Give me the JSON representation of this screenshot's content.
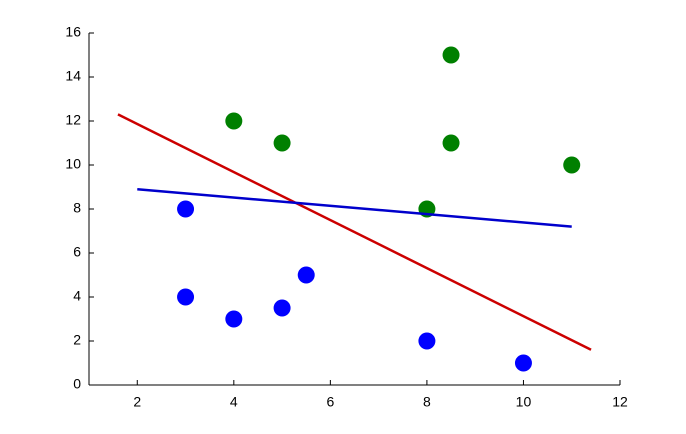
{
  "chart_data": {
    "type": "scatter",
    "xlim": [
      1,
      12
    ],
    "xticks": [
      2,
      4,
      6,
      8,
      10,
      12
    ],
    "ylim": [
      0,
      16
    ],
    "yticks": [
      0,
      2,
      4,
      6,
      8,
      10,
      12,
      14,
      16
    ],
    "grid": false,
    "series": [
      {
        "color": "#008000",
        "mode": "markers",
        "x": [
          4,
          5,
          8.5,
          8.5,
          8,
          11
        ],
        "values": [
          12,
          11,
          15,
          11,
          8,
          10
        ]
      },
      {
        "color": "#0000ff",
        "mode": "markers",
        "x": [
          3,
          3,
          4,
          5,
          5.5,
          8,
          10
        ],
        "values": [
          8,
          4,
          3,
          3.5,
          5,
          2,
          1
        ]
      },
      {
        "color": "#cc0000",
        "mode": "line",
        "x": [
          1.6,
          11.4
        ],
        "values": [
          12.3,
          1.6
        ]
      },
      {
        "color": "#0000cc",
        "mode": "line",
        "x": [
          2,
          11
        ],
        "values": [
          8.9,
          7.2
        ]
      }
    ]
  }
}
